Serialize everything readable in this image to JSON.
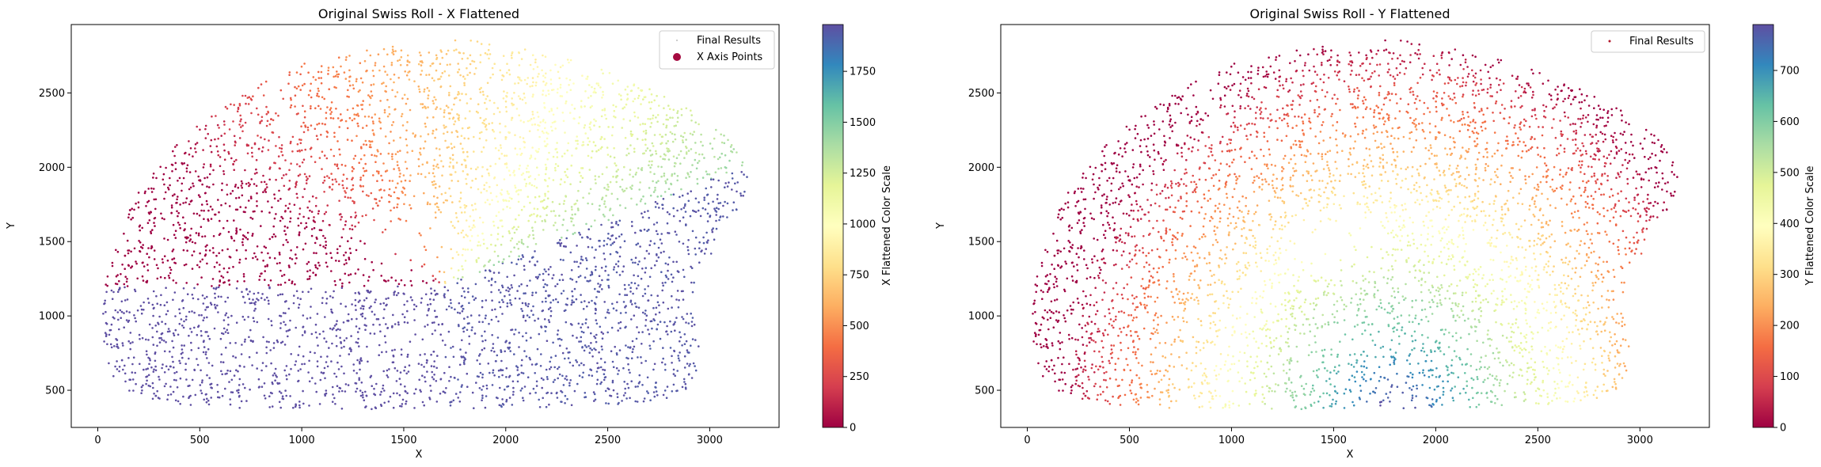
{
  "chart_data": [
    {
      "type": "scatter",
      "title": "Original Swiss Roll - X Flattened",
      "xlabel": "X",
      "ylabel": "Y",
      "xlim": [
        -130,
        3340
      ],
      "ylim": [
        250,
        2960
      ],
      "xticks": [
        "0",
        "500",
        "1000",
        "1500",
        "2000",
        "2500",
        "3000"
      ],
      "yticks": [
        "500",
        "1000",
        "1500",
        "2000",
        "2500"
      ],
      "grid": false,
      "legend_position": "top-right",
      "legend": [
        "Final Results",
        "X Axis Points"
      ],
      "series": [
        {
          "name": "Final Results",
          "marker": "tiny dot",
          "color": "#bbbbbb"
        },
        {
          "name": "X Axis Points",
          "marker": "circle",
          "color": "#a50a40"
        }
      ],
      "colorbar": {
        "label": "X Flattened Color Scale",
        "range": [
          0,
          1980
        ],
        "ticks": [
          "0",
          "250",
          "500",
          "750",
          "1000",
          "1250",
          "1500",
          "1750"
        ],
        "colormap": "Spectral"
      }
    },
    {
      "type": "scatter",
      "title": "Original Swiss Roll - Y Flattened",
      "xlabel": "X",
      "ylabel": "Y",
      "xlim": [
        -130,
        3340
      ],
      "ylim": [
        250,
        2960
      ],
      "xticks": [
        "0",
        "500",
        "1000",
        "1500",
        "2000",
        "2500",
        "3000"
      ],
      "yticks": [
        "500",
        "1000",
        "1500",
        "2000",
        "2500"
      ],
      "grid": false,
      "legend_position": "top-right",
      "legend": [
        "Final Results"
      ],
      "series": [
        {
          "name": "Final Results",
          "marker": "small dot",
          "color": "#b2182b"
        }
      ],
      "colorbar": {
        "label": "Y Flattened Color Scale",
        "range": [
          0,
          790
        ],
        "ticks": [
          "0",
          "100",
          "200",
          "300",
          "400",
          "500",
          "600",
          "700"
        ],
        "colormap": "Spectral"
      }
    }
  ]
}
